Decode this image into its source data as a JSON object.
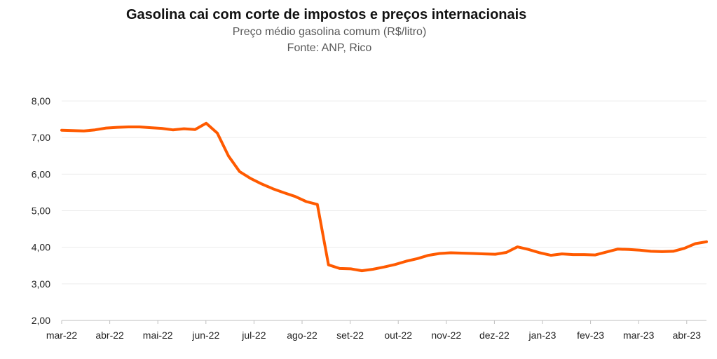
{
  "chart_data": {
    "type": "line",
    "title": "Gasolina cai com corte de impostos e preços internacionais",
    "subtitle": "Preço médio gasolina comum (R$/litro)",
    "source": "Fonte: ANP, Rico",
    "xlabel": "",
    "ylabel": "",
    "ylim": [
      2,
      8
    ],
    "yticks": [
      "2,00",
      "3,00",
      "4,00",
      "5,00",
      "6,00",
      "7,00",
      "8,00"
    ],
    "xtick_labels": [
      "mar-22",
      "abr-22",
      "mai-22",
      "jun-22",
      "jul-22",
      "ago-22",
      "set-22",
      "out-22",
      "nov-22",
      "dez-22",
      "jan-23",
      "fev-23",
      "mar-23",
      "abr-23"
    ],
    "grid": true,
    "legend": "none",
    "color": "#FF5A00",
    "series": [
      {
        "values": [
          7.2,
          7.19,
          7.18,
          7.21,
          7.26,
          7.28,
          7.29,
          7.29,
          7.27,
          7.25,
          7.21,
          7.24,
          7.22,
          7.39,
          7.12,
          6.5,
          6.07,
          5.88,
          5.73,
          5.6,
          5.49,
          5.39,
          5.25,
          5.17,
          3.52,
          3.42,
          3.41,
          3.36,
          3.4,
          3.46,
          3.53,
          3.62,
          3.69,
          3.78,
          3.83,
          3.85,
          3.84,
          3.83,
          3.82,
          3.81,
          3.86,
          4.01,
          3.94,
          3.85,
          3.78,
          3.82,
          3.8,
          3.8,
          3.79,
          3.87,
          3.95,
          3.94,
          3.92,
          3.89,
          3.88,
          3.89,
          3.97,
          4.1,
          4.15
        ]
      }
    ]
  }
}
